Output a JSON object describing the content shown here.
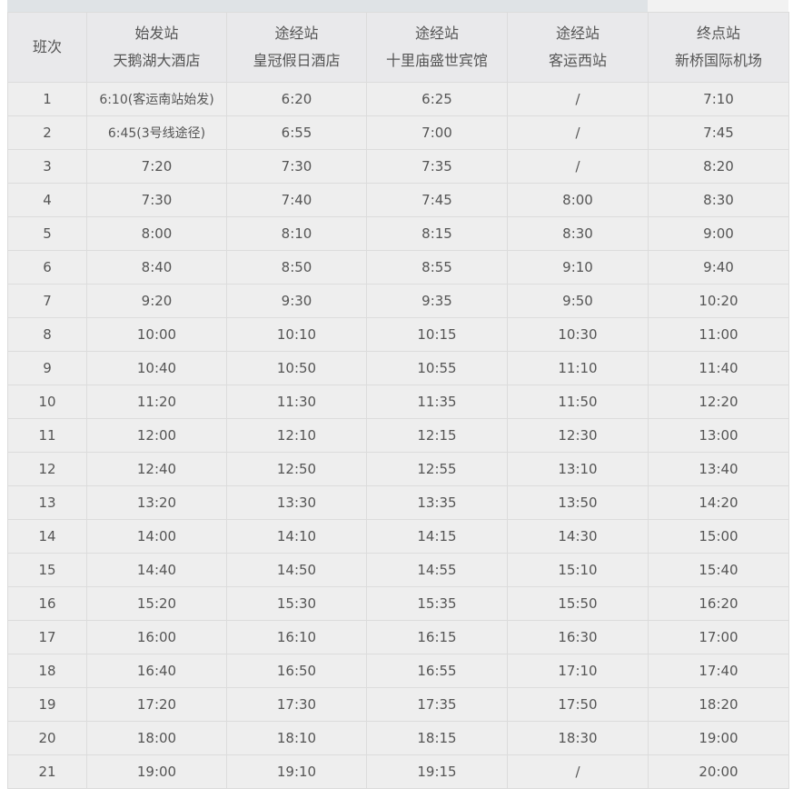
{
  "headers": [
    {
      "line1": "班次",
      "line2": ""
    },
    {
      "line1": "始发站",
      "line2": "天鹅湖大酒店"
    },
    {
      "line1": "途经站",
      "line2": "皇冠假日酒店"
    },
    {
      "line1": "途经站",
      "line2": "十里庙盛世宾馆"
    },
    {
      "line1": "途经站",
      "line2": "客运西站"
    },
    {
      "line1": "终点站",
      "line2": "新桥国际机场"
    }
  ],
  "rows": [
    [
      "1",
      "6:10(客运南站始发)",
      "6:20",
      "6:25",
      "/",
      "7:10"
    ],
    [
      "2",
      "6:45(3号线途径)",
      "6:55",
      "7:00",
      "/",
      "7:45"
    ],
    [
      "3",
      "7:20",
      "7:30",
      "7:35",
      "/",
      "8:20"
    ],
    [
      "4",
      "7:30",
      "7:40",
      "7:45",
      "8:00",
      "8:30"
    ],
    [
      "5",
      "8:00",
      "8:10",
      "8:15",
      "8:30",
      "9:00"
    ],
    [
      "6",
      "8:40",
      "8:50",
      "8:55",
      "9:10",
      "9:40"
    ],
    [
      "7",
      "9:20",
      "9:30",
      "9:35",
      "9:50",
      "10:20"
    ],
    [
      "8",
      "10:00",
      "10:10",
      "10:15",
      "10:30",
      "11:00"
    ],
    [
      "9",
      "10:40",
      "10:50",
      "10:55",
      "11:10",
      "11:40"
    ],
    [
      "10",
      "11:20",
      "11:30",
      "11:35",
      "11:50",
      "12:20"
    ],
    [
      "11",
      "12:00",
      "12:10",
      "12:15",
      "12:30",
      "13:00"
    ],
    [
      "12",
      "12:40",
      "12:50",
      "12:55",
      "13:10",
      "13:40"
    ],
    [
      "13",
      "13:20",
      "13:30",
      "13:35",
      "13:50",
      "14:20"
    ],
    [
      "14",
      "14:00",
      "14:10",
      "14:15",
      "14:30",
      "15:00"
    ],
    [
      "15",
      "14:40",
      "14:50",
      "14:55",
      "15:10",
      "15:40"
    ],
    [
      "16",
      "15:20",
      "15:30",
      "15:35",
      "15:50",
      "16:20"
    ],
    [
      "17",
      "16:00",
      "16:10",
      "16:15",
      "16:30",
      "17:00"
    ],
    [
      "18",
      "16:40",
      "16:50",
      "16:55",
      "17:10",
      "17:40"
    ],
    [
      "19",
      "17:20",
      "17:30",
      "17:35",
      "17:50",
      "18:20"
    ],
    [
      "20",
      "18:00",
      "18:10",
      "18:15",
      "18:30",
      "19:00"
    ],
    [
      "21",
      "19:00",
      "19:10",
      "19:15",
      "/",
      "20:00"
    ]
  ]
}
